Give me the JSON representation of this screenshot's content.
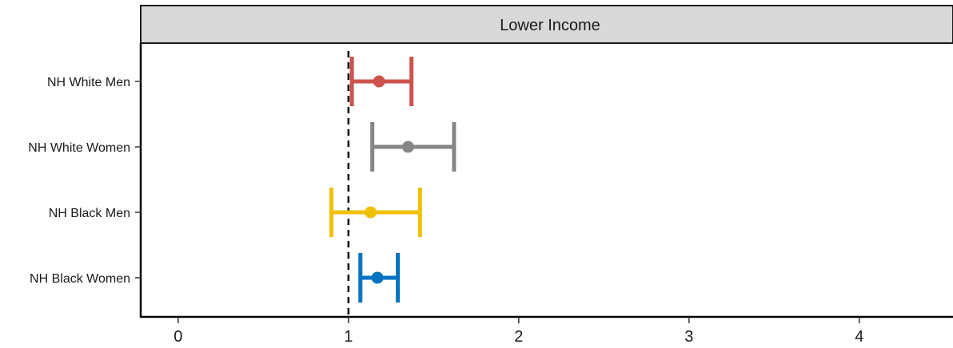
{
  "chart_data": {
    "type": "forest",
    "panel_title": "Lower Income",
    "title": "",
    "xlabel": "",
    "ylabel": "",
    "reference_line": 1,
    "xlim": [
      -0.22,
      4.55
    ],
    "x_ticks": [
      0,
      1,
      2,
      3,
      4
    ],
    "x_tick_labels": [
      "0",
      "1",
      "2",
      "3",
      "4"
    ],
    "categories": [
      "NH White Men",
      "NH White Women",
      "NH Black Men",
      "NH Black Women"
    ],
    "estimates": [
      {
        "label": "NH White Men",
        "estimate": 1.18,
        "lower": 1.02,
        "upper": 1.37,
        "color": "#CD534C"
      },
      {
        "label": "NH White Women",
        "estimate": 1.35,
        "lower": 1.14,
        "upper": 1.62,
        "color": "#868686"
      },
      {
        "label": "NH Black Men",
        "estimate": 1.13,
        "lower": 0.9,
        "upper": 1.42,
        "color": "#EFC000"
      },
      {
        "label": "NH Black Women",
        "estimate": 1.17,
        "lower": 1.07,
        "upper": 1.29,
        "color": "#0073C2"
      }
    ],
    "grid": false,
    "legend": "none"
  }
}
